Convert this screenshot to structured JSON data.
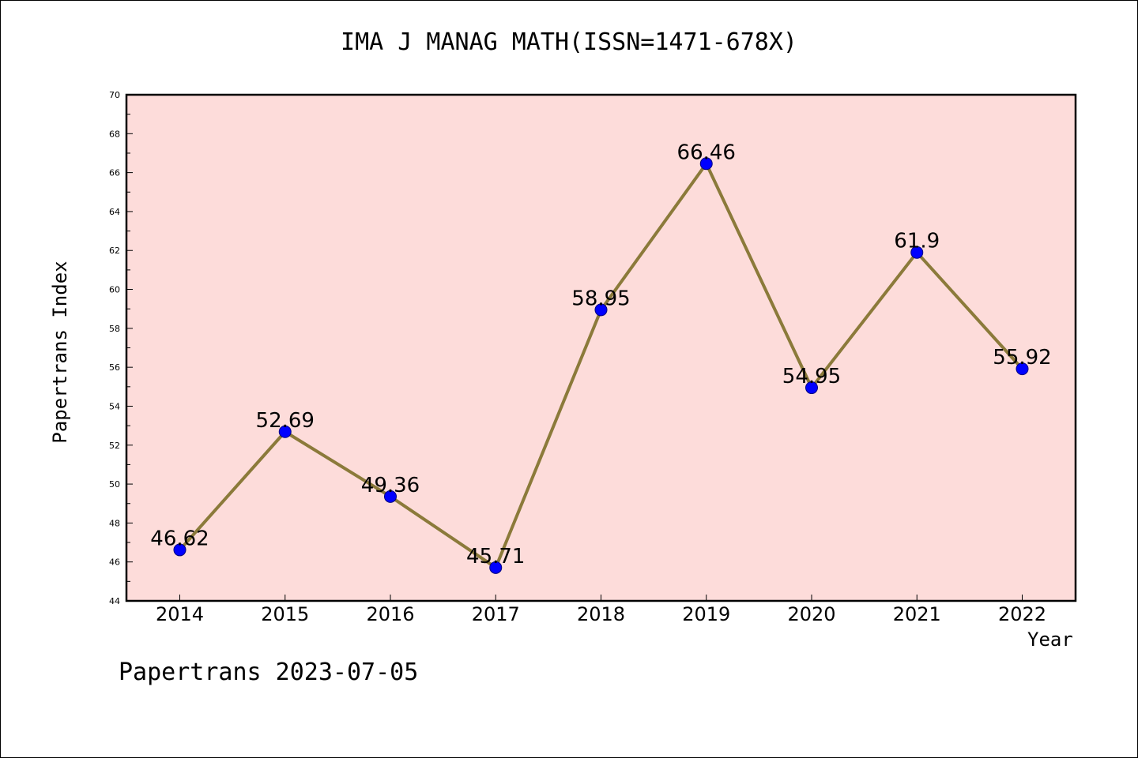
{
  "chart_data": {
    "type": "line",
    "title": "IMA J MANAG MATH(ISSN=1471-678X)",
    "xlabel": "Year",
    "ylabel": "Papertrans Index",
    "categories": [
      "2014",
      "2015",
      "2016",
      "2017",
      "2018",
      "2019",
      "2020",
      "2021",
      "2022"
    ],
    "values": [
      46.62,
      52.69,
      49.36,
      45.71,
      58.95,
      66.46,
      54.95,
      61.9,
      55.92
    ],
    "data_labels": [
      "46.62",
      "52.69",
      "49.36",
      "45.71",
      "58.95",
      "66.46",
      "54.95",
      "61.9",
      "55.92"
    ],
    "ylim": [
      44,
      70
    ],
    "yticks": [
      44,
      46,
      48,
      50,
      52,
      54,
      56,
      58,
      60,
      62,
      64,
      66,
      68,
      70
    ],
    "grid": false,
    "colors": {
      "plot_background": "#fddcda",
      "line": "#8b7a3a",
      "marker": "#0000ff",
      "marker_edge": "#000080"
    }
  },
  "footer": "Papertrans 2023-07-05"
}
